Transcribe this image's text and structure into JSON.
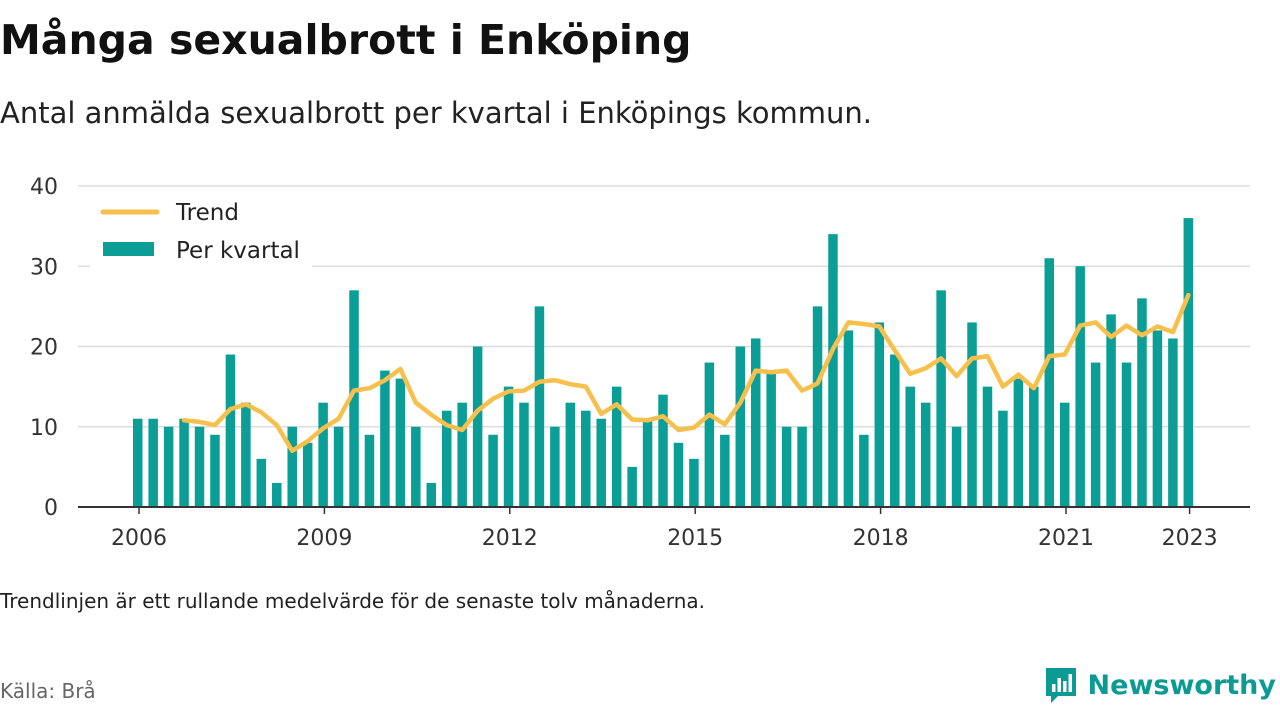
{
  "title": "Många sexualbrott i Enköping",
  "subtitle": "Antal anmälda sexualbrott per kvartal i Enköpings kommun.",
  "note": "Trendlinjen är ett rullande medelvärde för de senaste tolv månaderna.",
  "source": "Källa: Brå",
  "brand": {
    "name": "Newsworthy",
    "icon": "newsworthy-logo-icon"
  },
  "colors": {
    "bar": "#0b9e96",
    "trend": "#f7c04c",
    "grid": "#dcdcdc",
    "axis": "#333333"
  },
  "chart_data": {
    "type": "bar",
    "title": "",
    "xlabel": "",
    "ylabel": "",
    "ylim": [
      0,
      40
    ],
    "yticks": [
      "0",
      "10",
      "20",
      "30",
      "40"
    ],
    "xticks": [
      "2006",
      "2009",
      "2012",
      "2015",
      "2018",
      "2021",
      "2023"
    ],
    "grid": true,
    "legend_position": "top-left",
    "legend": [
      "Trend",
      "Per kvartal"
    ],
    "series": [
      {
        "name": "Per kvartal",
        "type": "bar",
        "values": [
          11,
          11,
          10,
          11,
          10,
          9,
          19,
          13,
          6,
          3,
          10,
          8,
          13,
          10,
          27,
          9,
          17,
          16,
          10,
          3,
          12,
          13,
          20,
          9,
          15,
          13,
          25,
          10,
          13,
          12,
          11,
          15,
          5,
          11,
          14,
          8,
          6,
          18,
          9,
          20,
          21,
          17,
          10,
          10,
          25,
          34,
          22,
          9,
          23,
          19,
          15,
          13,
          27,
          10,
          23,
          15,
          12,
          16,
          15,
          31,
          13,
          30,
          18,
          24,
          18,
          26,
          22,
          21,
          36
        ]
      },
      {
        "name": "Trend",
        "type": "line",
        "values": [
          null,
          null,
          null,
          10.8,
          10.6,
          10.2,
          12.2,
          12.8,
          11.8,
          10.2,
          7.0,
          8.2,
          9.8,
          11.0,
          14.5,
          14.8,
          15.8,
          17.2,
          13.0,
          11.5,
          10.2,
          9.6,
          12.0,
          13.5,
          14.4,
          14.5,
          15.6,
          15.8,
          15.3,
          15.0,
          11.6,
          12.8,
          10.9,
          10.8,
          11.3,
          9.6,
          9.9,
          11.5,
          10.3,
          13.0,
          17.0,
          16.8,
          17.0,
          14.5,
          15.4,
          19.7,
          23.0,
          22.8,
          22.5,
          19.5,
          16.6,
          17.3,
          18.5,
          16.3,
          18.5,
          18.8,
          15.0,
          16.5,
          14.8,
          18.8,
          19.0,
          22.6,
          23.0,
          21.2,
          22.6,
          21.4,
          22.5,
          21.8,
          26.4
        ]
      }
    ]
  }
}
